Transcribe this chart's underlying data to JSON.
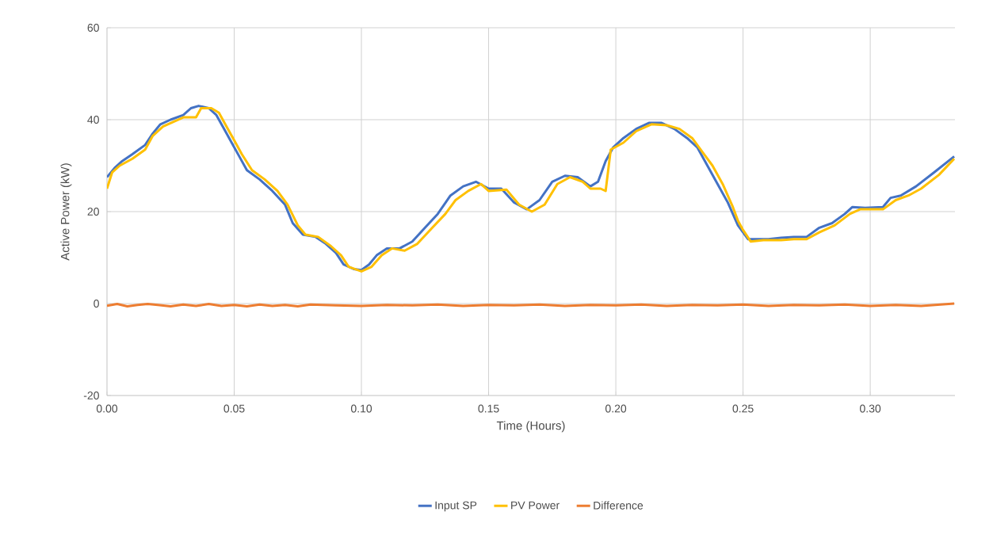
{
  "chart_data": {
    "type": "line",
    "xlabel": "Time (Hours)",
    "ylabel": "Active Power (kW)",
    "xlim": [
      0,
      0.3333
    ],
    "ylim": [
      -20,
      60
    ],
    "xticks": [
      {
        "value": 0,
        "label": "0.00"
      },
      {
        "value": 0.05,
        "label": "0.05"
      },
      {
        "value": 0.1,
        "label": "0.10"
      },
      {
        "value": 0.15,
        "label": "0.15"
      },
      {
        "value": 0.2,
        "label": "0.20"
      },
      {
        "value": 0.25,
        "label": "0.25"
      },
      {
        "value": 0.3,
        "label": "0.30"
      }
    ],
    "yticks": [
      -20,
      0,
      20,
      40,
      60
    ],
    "grid": true,
    "legend": "bottom",
    "line_style": "solid",
    "marker": "none",
    "series": [
      {
        "name": "Input SP",
        "color": "#4472c4",
        "x": [
          0,
          0.003,
          0.006,
          0.01,
          0.015,
          0.018,
          0.021,
          0.025,
          0.03,
          0.033,
          0.036,
          0.04,
          0.043,
          0.046,
          0.049,
          0.052,
          0.055,
          0.06,
          0.065,
          0.07,
          0.073,
          0.077,
          0.082,
          0.086,
          0.09,
          0.093,
          0.097,
          0.1,
          0.103,
          0.106,
          0.11,
          0.115,
          0.12,
          0.125,
          0.13,
          0.135,
          0.14,
          0.145,
          0.15,
          0.155,
          0.16,
          0.165,
          0.17,
          0.175,
          0.18,
          0.185,
          0.19,
          0.193,
          0.196,
          0.199,
          0.203,
          0.208,
          0.213,
          0.218,
          0.223,
          0.228,
          0.232,
          0.236,
          0.24,
          0.244,
          0.248,
          0.252,
          0.256,
          0.26,
          0.265,
          0.27,
          0.275,
          0.28,
          0.285,
          0.29,
          0.293,
          0.298,
          0.305,
          0.308,
          0.312,
          0.318,
          0.325,
          0.333
        ],
        "values": [
          27.5,
          29.5,
          31,
          32.5,
          34.5,
          37,
          39,
          40,
          41,
          42.5,
          43,
          42.5,
          41,
          38,
          35,
          32,
          29,
          27,
          24.5,
          21.5,
          17.5,
          15,
          14.5,
          13,
          11,
          8.5,
          7.5,
          7.3,
          8.5,
          10.5,
          12,
          12,
          13.5,
          16.5,
          19.5,
          23.5,
          25.5,
          26.5,
          25,
          25,
          22,
          20.5,
          22.5,
          26.5,
          27.8,
          27.5,
          25.5,
          26.5,
          31,
          34,
          36,
          38,
          39.3,
          39.3,
          38,
          36,
          34,
          30,
          26,
          22,
          17,
          14,
          14,
          14,
          14.3,
          14.5,
          14.5,
          16.5,
          17.5,
          19.5,
          21,
          20.8,
          21,
          23,
          23.5,
          25.5,
          28.5,
          32
        ]
      },
      {
        "name": "PV Power",
        "color": "#ffc000",
        "x": [
          0,
          0.002,
          0.005,
          0.01,
          0.015,
          0.018,
          0.022,
          0.026,
          0.03,
          0.035,
          0.037,
          0.041,
          0.044,
          0.047,
          0.05,
          0.053,
          0.057,
          0.062,
          0.067,
          0.071,
          0.075,
          0.078,
          0.083,
          0.088,
          0.092,
          0.095,
          0.1,
          0.104,
          0.108,
          0.112,
          0.117,
          0.122,
          0.127,
          0.133,
          0.137,
          0.142,
          0.147,
          0.15,
          0.157,
          0.162,
          0.167,
          0.172,
          0.177,
          0.182,
          0.187,
          0.19,
          0.194,
          0.196,
          0.198,
          0.203,
          0.208,
          0.214,
          0.22,
          0.225,
          0.23,
          0.234,
          0.238,
          0.242,
          0.246,
          0.248,
          0.25,
          0.253,
          0.258,
          0.265,
          0.27,
          0.275,
          0.28,
          0.286,
          0.292,
          0.296,
          0.305,
          0.31,
          0.315,
          0.32,
          0.327,
          0.333
        ],
        "values": [
          25,
          28.5,
          30,
          31.5,
          33.5,
          36.5,
          38.5,
          39.5,
          40.5,
          40.5,
          42.5,
          42.5,
          41.5,
          38.5,
          35.5,
          32.5,
          29,
          27,
          24.5,
          21.5,
          17,
          15,
          14.5,
          12.5,
          10.5,
          8,
          7,
          8,
          10.5,
          12,
          11.5,
          13,
          16,
          19.5,
          22.5,
          24.5,
          26,
          24.5,
          24.8,
          21.5,
          20,
          21.5,
          26,
          27.5,
          26.5,
          25,
          25,
          24.5,
          33.5,
          35,
          37.5,
          39,
          38.8,
          38,
          36,
          33,
          30,
          26,
          21,
          18,
          16,
          13.5,
          13.8,
          13.8,
          14,
          14,
          15.5,
          17,
          19.5,
          20.5,
          20.5,
          22.5,
          23.5,
          25,
          28,
          31.5
        ]
      },
      {
        "name": "Difference",
        "color": "#ed7d31",
        "x": [
          0,
          0.004,
          0.008,
          0.012,
          0.016,
          0.02,
          0.025,
          0.03,
          0.035,
          0.04,
          0.045,
          0.05,
          0.055,
          0.06,
          0.065,
          0.07,
          0.075,
          0.08,
          0.09,
          0.1,
          0.11,
          0.12,
          0.13,
          0.14,
          0.15,
          0.16,
          0.17,
          0.18,
          0.19,
          0.2,
          0.21,
          0.22,
          0.23,
          0.24,
          0.25,
          0.26,
          0.27,
          0.28,
          0.29,
          0.3,
          0.31,
          0.32,
          0.333
        ],
        "values": [
          -0.5,
          -0.1,
          -0.6,
          -0.3,
          -0.1,
          -0.3,
          -0.6,
          -0.2,
          -0.5,
          -0.1,
          -0.5,
          -0.3,
          -0.6,
          -0.2,
          -0.5,
          -0.3,
          -0.6,
          -0.2,
          -0.4,
          -0.5,
          -0.3,
          -0.4,
          -0.2,
          -0.5,
          -0.3,
          -0.4,
          -0.2,
          -0.5,
          -0.3,
          -0.4,
          -0.2,
          -0.5,
          -0.3,
          -0.4,
          -0.2,
          -0.5,
          -0.3,
          -0.4,
          -0.2,
          -0.5,
          -0.3,
          -0.5,
          0
        ]
      }
    ]
  }
}
